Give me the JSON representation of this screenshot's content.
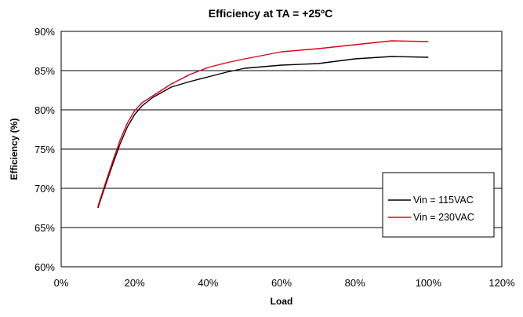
{
  "chart_data": {
    "type": "line",
    "title": "Efficiency at TA = +25ºC",
    "xlabel": "Load",
    "ylabel": "Efficiency (%)",
    "xlim": [
      0,
      120
    ],
    "ylim": [
      60,
      90
    ],
    "x_ticks": [
      "0%",
      "20%",
      "40%",
      "60%",
      "80%",
      "100%",
      "120%"
    ],
    "y_ticks": [
      "60%",
      "65%",
      "70%",
      "75%",
      "80%",
      "85%",
      "90%"
    ],
    "grid": "horizontal",
    "legend_position": "right",
    "series": [
      {
        "name": "Vin = 115VAC",
        "color": "#000000",
        "x": [
          10,
          12,
          14,
          16,
          18,
          20,
          22,
          25,
          30,
          35,
          40,
          45,
          50,
          60,
          70,
          80,
          90,
          100
        ],
        "y": [
          67.5,
          70.3,
          73.0,
          75.6,
          77.8,
          79.4,
          80.5,
          81.6,
          82.9,
          83.6,
          84.2,
          84.8,
          85.3,
          85.7,
          85.9,
          86.5,
          86.8,
          86.7
        ]
      },
      {
        "name": "Vin = 230VAC",
        "color": "#e0001a",
        "x": [
          10,
          12,
          14,
          16,
          18,
          20,
          22,
          25,
          30,
          35,
          40,
          45,
          50,
          60,
          70,
          80,
          90,
          100
        ],
        "y": [
          67.7,
          70.6,
          73.4,
          76.1,
          78.3,
          79.9,
          80.9,
          81.8,
          83.3,
          84.5,
          85.4,
          86.0,
          86.5,
          87.4,
          87.8,
          88.3,
          88.8,
          88.7
        ]
      }
    ]
  }
}
